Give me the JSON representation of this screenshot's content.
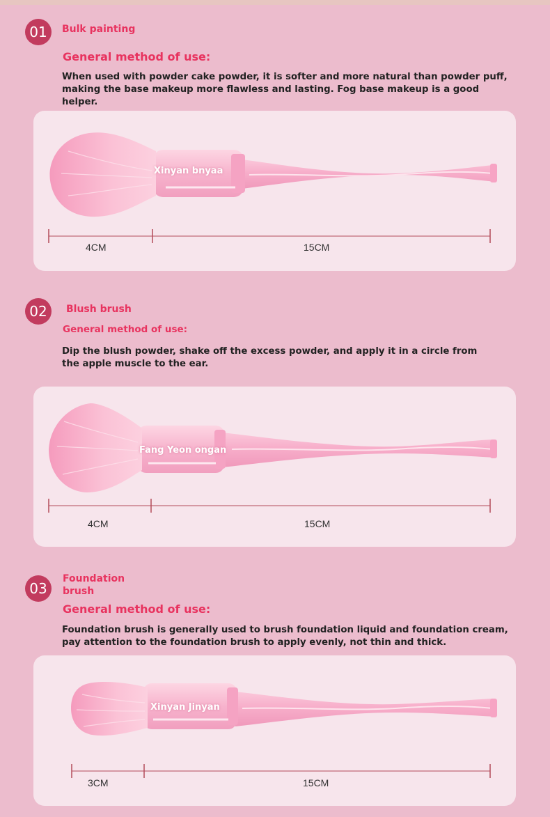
{
  "sections": [
    {
      "number": "01",
      "title": "Bulk painting",
      "subtitle": "General method of use:",
      "description": "When used with powder cake powder, it is softer and more natural than powder puff, making the base makeup more flawless and lasting. Fog base makeup is a good helper.",
      "brand": "Xinyan bnyaa",
      "head_length": "4CM",
      "handle_length": "15CM"
    },
    {
      "number": "02",
      "title": "Blush brush",
      "subtitle": "General method of use:",
      "description": "Dip the blush powder, shake off the excess powder, and apply it in a circle from the apple muscle to the ear.",
      "brand": "Fang Yeon ongan",
      "head_length": "4CM",
      "handle_length": "15CM"
    },
    {
      "number": "03",
      "title": "Foundation brush",
      "subtitle": "General method of use:",
      "description": "Foundation brush is generally used to brush foundation liquid and foundation cream, pay attention to the foundation brush to apply evenly, not thin and thick.",
      "brand": "Xinyan Jinyan",
      "head_length": "3CM",
      "handle_length": "15CM"
    }
  ],
  "colors": {
    "background": "#ecbccd",
    "card": "#f7e5ec",
    "accent": "#e8335f",
    "number_badge": "#c23b5e",
    "brush_pink": "#f6a9c6",
    "measure_line": "#b34b5a"
  }
}
